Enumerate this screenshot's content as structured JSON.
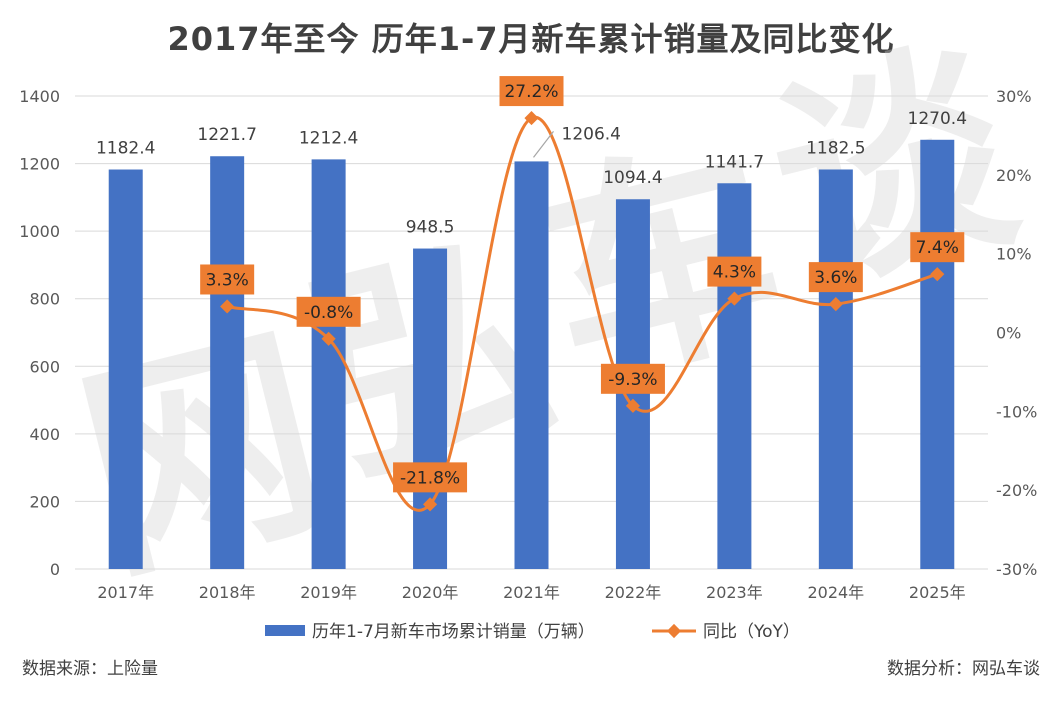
{
  "chart_data": {
    "type": "bar+line",
    "title": "2017年至今 历年1-7月新车累计销量及同比变化",
    "categories": [
      "2017年",
      "2018年",
      "2019年",
      "2020年",
      "2021年",
      "2022年",
      "2023年",
      "2024年",
      "2025年"
    ],
    "series": [
      {
        "name": "历年1-7月新车市场累计销量（万辆）",
        "type": "bar",
        "axis": "left",
        "color": "#4472C4",
        "values": [
          1182.4,
          1221.7,
          1212.4,
          948.5,
          1206.4,
          1094.4,
          1141.7,
          1182.5,
          1270.4
        ],
        "labels": [
          "1182.4",
          "1221.7",
          "1212.4",
          "948.5",
          "1206.4",
          "1094.4",
          "1141.7",
          "1182.5",
          "1270.4"
        ]
      },
      {
        "name": "同比（YoY）",
        "type": "line",
        "axis": "right",
        "color": "#ED7D31",
        "values": [
          null,
          3.3,
          -0.8,
          -21.8,
          27.2,
          -9.3,
          4.3,
          3.6,
          7.4
        ],
        "labels": [
          "",
          "3.3%",
          "-0.8%",
          "-21.8%",
          "27.2%",
          "-9.3%",
          "4.3%",
          "3.6%",
          "7.4%"
        ]
      }
    ],
    "y_left": {
      "min": 0,
      "max": 1400,
      "ticks": [
        "0",
        "200",
        "400",
        "600",
        "800",
        "1000",
        "1200",
        "1400"
      ]
    },
    "y_right": {
      "min": -30,
      "max": 30,
      "ticks": [
        "-30%",
        "-20%",
        "-10%",
        "0%",
        "10%",
        "20%",
        "30%"
      ]
    },
    "grid": true,
    "legend": "bottom",
    "watermark": "网弘车谈"
  },
  "footer": {
    "source": "数据来源：上险量",
    "analysis": "数据分析：网弘车谈"
  }
}
